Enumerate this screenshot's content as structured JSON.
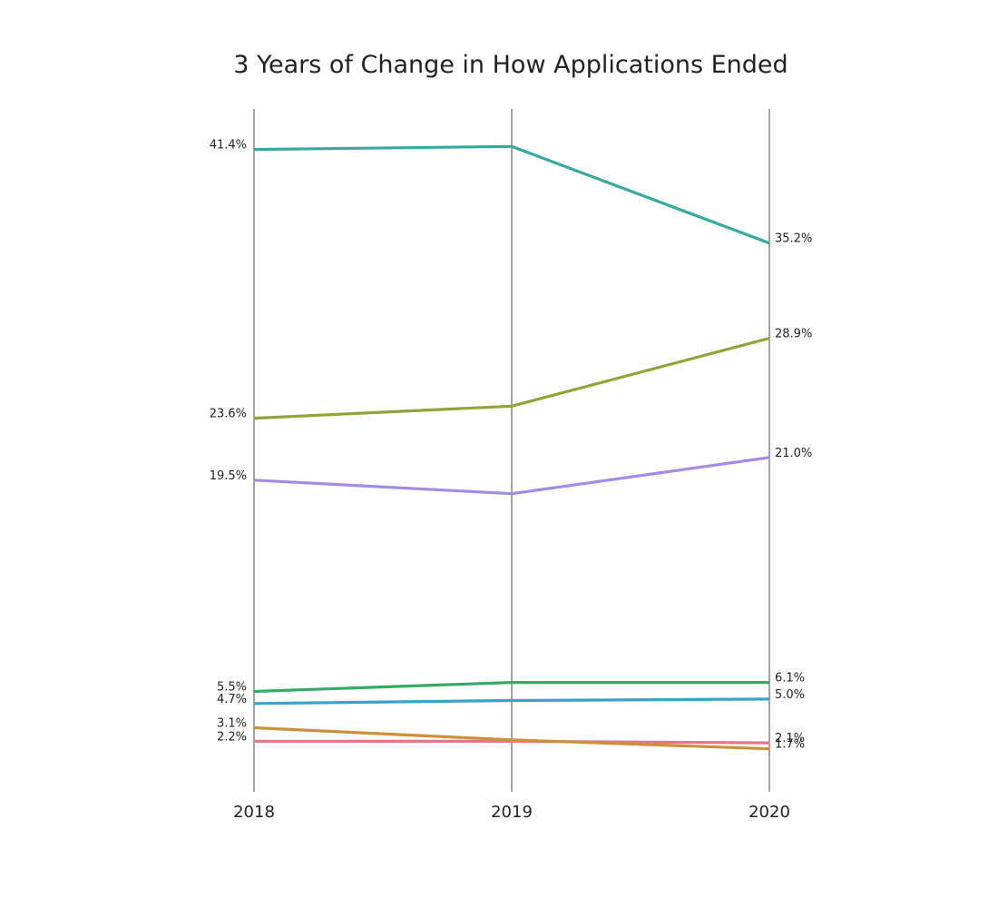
{
  "chart_data": {
    "type": "line",
    "title": "3 Years of Change in How Applications Ended",
    "xlabel": "",
    "ylabel": "",
    "categories": [
      "2018",
      "2019",
      "2020"
    ],
    "ylim": [
      0,
      43
    ],
    "grid": false,
    "legend": "none",
    "series": [
      {
        "color": "#36aaa0",
        "values": [
          41.4,
          41.6,
          35.2
        ],
        "labels": [
          "41.4%",
          "",
          "35.2%"
        ]
      },
      {
        "color": "#93a337",
        "values": [
          23.6,
          24.4,
          28.9
        ],
        "labels": [
          "23.6%",
          "",
          "28.9%"
        ]
      },
      {
        "color": "#a38beb",
        "values": [
          19.5,
          18.6,
          21.0
        ],
        "labels": [
          "19.5%",
          "",
          "21.0%"
        ]
      },
      {
        "color": "#35ab65",
        "values": [
          5.5,
          6.1,
          6.1
        ],
        "labels": [
          "5.5%",
          "",
          "6.1%"
        ]
      },
      {
        "color": "#3aa2cf",
        "values": [
          4.7,
          4.9,
          5.0
        ],
        "labels": [
          "4.7%",
          "",
          "5.0%"
        ]
      },
      {
        "color": "#e8748a",
        "values": [
          2.2,
          2.2,
          2.1
        ],
        "labels": [
          "2.2%",
          "",
          "2.1%"
        ]
      },
      {
        "color": "#cd9038",
        "values": [
          3.1,
          2.3,
          1.7
        ],
        "labels": [
          "3.1%",
          "",
          "1.7%"
        ]
      }
    ]
  }
}
